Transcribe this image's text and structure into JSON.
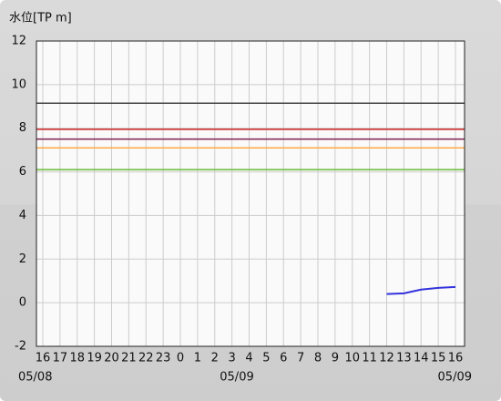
{
  "chart_data": {
    "type": "line",
    "y_label": "水位[TP m]",
    "categories": [
      "16",
      "17",
      "18",
      "19",
      "20",
      "21",
      "22",
      "23",
      "0",
      "1",
      "2",
      "3",
      "4",
      "5",
      "6",
      "7",
      "8",
      "9",
      "10",
      "11",
      "12",
      "13",
      "14",
      "15",
      "16"
    ],
    "dates": [
      "05/08",
      null,
      null,
      null,
      null,
      null,
      null,
      null,
      null,
      null,
      null,
      null,
      "05/09",
      null,
      null,
      null,
      null,
      null,
      null,
      null,
      null,
      null,
      null,
      null,
      "05/09"
    ],
    "series": [
      {
        "color": "#3333dd",
        "values": [
          null,
          null,
          null,
          null,
          null,
          null,
          null,
          null,
          null,
          null,
          null,
          null,
          null,
          null,
          null,
          null,
          null,
          null,
          null,
          null,
          0.4,
          0.43,
          0.6,
          0.68,
          0.72
        ]
      }
    ],
    "reference_lines": [
      {
        "value": 9.15,
        "color": "#444444"
      },
      {
        "value": 7.95,
        "color": "#cc2222"
      },
      {
        "value": 7.5,
        "color": "#802050"
      },
      {
        "value": 7.1,
        "color": "#ffaa44"
      },
      {
        "value": 6.1,
        "color": "#66bb33"
      }
    ],
    "ylim": [
      -2,
      12
    ],
    "yticks": [
      -2,
      0,
      2,
      4,
      6,
      8,
      10,
      12
    ],
    "grid": true
  }
}
